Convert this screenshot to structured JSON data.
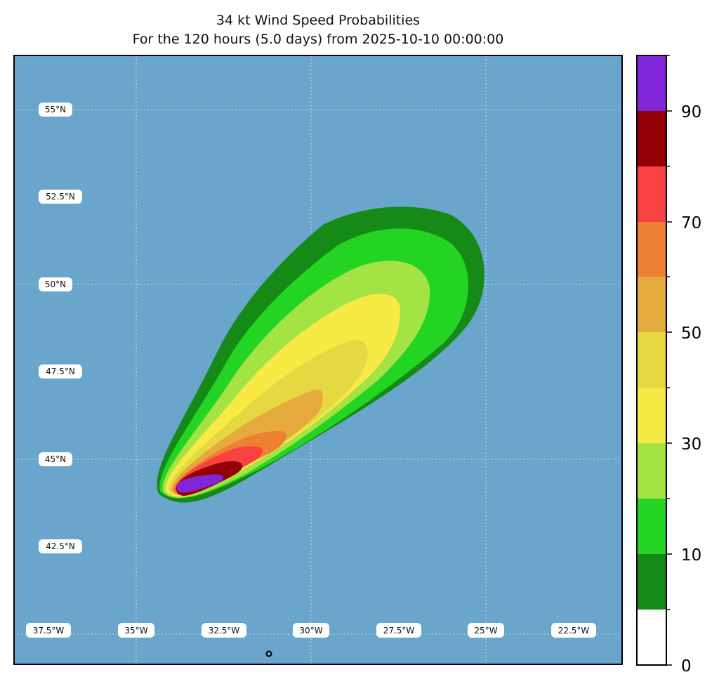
{
  "title": {
    "line1": "34 kt Wind Speed Probabilities",
    "line2": "For the 120 hours (5.0 days) from 2025-10-10 00:00:00"
  },
  "map": {
    "ocean_color": "#6aa6cc",
    "lat_labels": [
      "55°N",
      "52.5°N",
      "50°N",
      "47.5°N",
      "45°N",
      "42.5°N"
    ],
    "lon_labels": [
      "37.5°W",
      "35°W",
      "32.5°W",
      "30°W",
      "27.5°W",
      "25°W",
      "22.5°W"
    ],
    "bands": [
      {
        "level": "0-10",
        "color": "#168a16"
      },
      {
        "level": "10-20",
        "color": "#23d423"
      },
      {
        "level": "20-30",
        "color": "#a4e344"
      },
      {
        "level": "30-40",
        "color": "#f8ea45"
      },
      {
        "level": "40-50",
        "color": "#e6d840"
      },
      {
        "level": "50-60",
        "color": "#e4aa3b"
      },
      {
        "level": "60-70",
        "color": "#ee8031"
      },
      {
        "level": "70-80",
        "color": "#f94141"
      },
      {
        "level": "80-90",
        "color": "#930003"
      },
      {
        "level": "90-100",
        "color": "#8226da"
      }
    ]
  },
  "colorbar": {
    "ticks": [
      "0",
      "10",
      "30",
      "50",
      "70",
      "90"
    ],
    "colors": [
      "#ffffff",
      "#168a16",
      "#23d423",
      "#a4e344",
      "#f8ea45",
      "#e6d840",
      "#e4aa3b",
      "#ee8031",
      "#f94141",
      "#930003",
      "#8226da"
    ]
  }
}
